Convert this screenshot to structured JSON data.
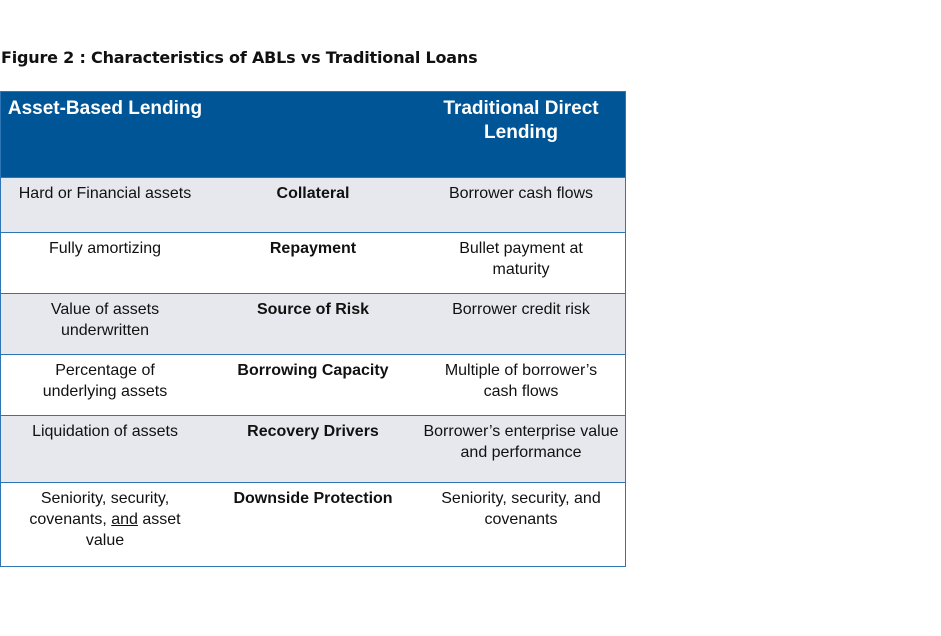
{
  "figure_title": "Figure 2 :  Characteristics of ABLs vs Traditional Loans",
  "table": {
    "headers": {
      "left": "Asset-Based Lending",
      "middle": "",
      "right": "Traditional Direct Lending"
    },
    "rows": [
      {
        "left": "Hard or Financial assets",
        "middle": "Collateral",
        "right": "Borrower cash flows"
      },
      {
        "left": "Fully amortizing",
        "middle": "Repayment",
        "right": "Bullet payment at maturity"
      },
      {
        "left": "Value of assets underwritten",
        "middle": "Source of Risk",
        "right": "Borrower credit risk"
      },
      {
        "left": "Percentage of underlying assets",
        "middle": "Borrowing Capacity",
        "right": "Multiple of borrower’s cash flows"
      },
      {
        "left": "Liquidation of assets",
        "middle": "Recovery Drivers",
        "right": "Borrower’s enterprise value and performance"
      },
      {
        "left_parts": [
          "Seniority, security, covenants, ",
          "and",
          " asset value"
        ],
        "middle": "Downside Protection",
        "right": "Seniority, security, and covenants"
      }
    ]
  },
  "colors": {
    "header_bg": "#005596",
    "shaded_row_bg": "#e7e8ee",
    "border": "#2e75b6"
  }
}
